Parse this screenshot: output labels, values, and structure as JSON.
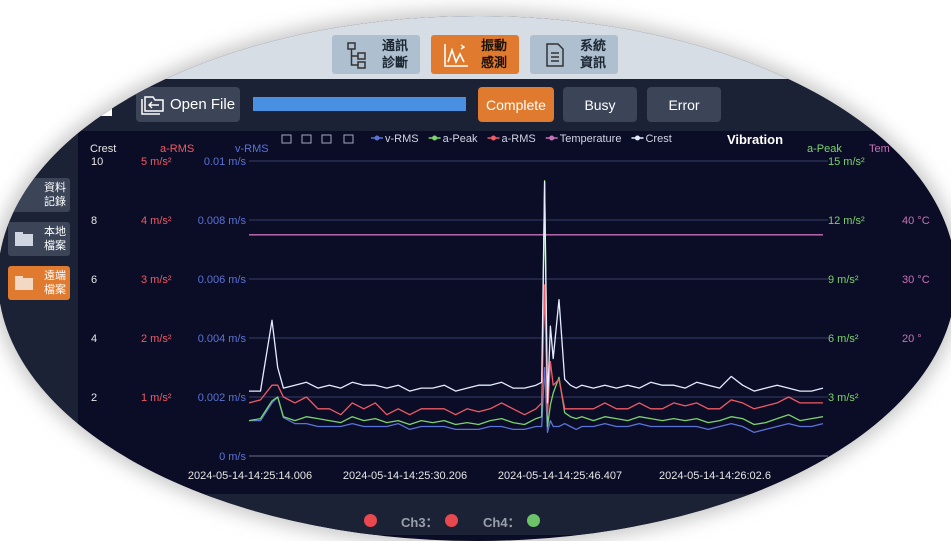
{
  "nav": {
    "diagnostics": "通訊診斷",
    "vibration": "振動感測",
    "system": "系統資訊"
  },
  "toolbar": {
    "open_file": "Open File",
    "progress": 1.0,
    "complete": "Complete",
    "busy": "Busy",
    "error": "Error"
  },
  "sidebar": {
    "items": [
      {
        "label": "資料記錄",
        "active": false
      },
      {
        "label": "本地檔案",
        "active": false
      },
      {
        "label": "遠端檔案",
        "active": true
      }
    ]
  },
  "colors": {
    "accent": "#e07a2e",
    "v_rms": "#5a73d6",
    "a_peak": "#7bd36b",
    "a_rms": "#ef5a64",
    "temperature": "#c971b8",
    "crest": "#e6ecff"
  },
  "chart_data": {
    "type": "line",
    "title": "Vibration",
    "legend": [
      "v-RMS",
      "a-Peak",
      "a-RMS",
      "Temperature",
      "Crest"
    ],
    "toolbox_icons": [
      "zoom-icon",
      "zoom-reset-icon",
      "restore-icon",
      "download-icon"
    ],
    "axes": {
      "crest": {
        "label": "Crest",
        "ticks": [
          "10",
          "8",
          "6",
          "4",
          "2"
        ],
        "range": [
          0,
          10
        ]
      },
      "a_rms": {
        "label": "a-RMS",
        "ticks": [
          "5 m/s²",
          "4 m/s²",
          "3 m/s²",
          "2 m/s²",
          "1 m/s²"
        ],
        "range": [
          0,
          5
        ]
      },
      "v_rms": {
        "label": "v-RMS",
        "ticks": [
          "0.01 m/s",
          "0.008 m/s",
          "0.006 m/s",
          "0.004 m/s",
          "0.002 m/s",
          "0 m/s"
        ],
        "range": [
          0,
          0.01
        ]
      },
      "a_peak": {
        "label": "a-Peak",
        "ticks": [
          "15 m/s²",
          "12 m/s²",
          "9 m/s²",
          "6 m/s²",
          "3 m/s²"
        ],
        "range": [
          0,
          15
        ]
      },
      "temperature": {
        "label": "Tem",
        "ticks": [
          "40 °C",
          "30 °C",
          "20 °"
        ],
        "range": [
          0,
          50
        ]
      }
    },
    "x_labels": [
      "2024-05-14-14:25:14.006",
      "2024-05-14-14:25:30.206",
      "2024-05-14-14:25:46.407",
      "2024-05-14-14:26:02.6"
    ],
    "x": [
      0,
      0.02,
      0.04,
      0.05,
      0.06,
      0.08,
      0.1,
      0.12,
      0.14,
      0.16,
      0.18,
      0.2,
      0.22,
      0.24,
      0.26,
      0.28,
      0.3,
      0.32,
      0.34,
      0.36,
      0.38,
      0.4,
      0.42,
      0.44,
      0.46,
      0.48,
      0.5,
      0.51,
      0.515,
      0.52,
      0.525,
      0.53,
      0.54,
      0.55,
      0.56,
      0.57,
      0.58,
      0.6,
      0.62,
      0.64,
      0.66,
      0.68,
      0.7,
      0.72,
      0.74,
      0.76,
      0.78,
      0.8,
      0.82,
      0.84,
      0.86,
      0.88,
      0.9,
      0.92,
      0.94,
      0.96,
      0.98,
      1.0
    ],
    "series": [
      {
        "name": "v-RMS",
        "axis": "v_rms",
        "values": [
          0.0012,
          0.0012,
          0.0018,
          0.002,
          0.0013,
          0.0011,
          0.0011,
          0.001,
          0.001,
          0.001,
          0.0011,
          0.001,
          0.001,
          0.001,
          0.0011,
          0.0009,
          0.001,
          0.001,
          0.001,
          0.0009,
          0.0009,
          0.0009,
          0.001,
          0.001,
          0.0009,
          0.0009,
          0.001,
          0.001,
          0.003,
          0.0008,
          0.0012,
          0.001,
          0.001,
          0.0011,
          0.001,
          0.0009,
          0.001,
          0.001,
          0.0011,
          0.001,
          0.001,
          0.0011,
          0.001,
          0.001,
          0.001,
          0.001,
          0.001,
          0.0009,
          0.001,
          0.0011,
          0.001,
          0.0008,
          0.0009,
          0.001,
          0.0011,
          0.001,
          0.001,
          0.0011
        ]
      },
      {
        "name": "a-Peak",
        "axis": "a_peak",
        "values": [
          1.8,
          1.9,
          2.8,
          3.0,
          2.0,
          1.8,
          2.0,
          1.9,
          1.8,
          1.7,
          2.0,
          1.8,
          1.9,
          1.7,
          1.8,
          1.6,
          1.8,
          1.7,
          1.8,
          1.6,
          1.7,
          1.6,
          1.8,
          1.9,
          1.7,
          1.6,
          1.9,
          2.0,
          14.0,
          1.5,
          2.6,
          3.2,
          4.0,
          2.2,
          2.0,
          1.9,
          2.0,
          1.8,
          2.0,
          1.9,
          1.8,
          2.0,
          1.9,
          1.8,
          1.9,
          1.8,
          1.9,
          1.7,
          1.8,
          2.0,
          1.9,
          1.6,
          1.7,
          1.9,
          2.1,
          1.8,
          1.9,
          2.0
        ]
      },
      {
        "name": "a-RMS",
        "axis": "a_rms",
        "values": [
          0.9,
          0.95,
          1.2,
          1.2,
          1.0,
          0.9,
          1.0,
          0.8,
          0.8,
          0.7,
          0.9,
          0.8,
          0.9,
          0.7,
          0.8,
          0.7,
          0.8,
          0.8,
          0.8,
          0.7,
          0.8,
          0.75,
          0.8,
          0.9,
          0.8,
          0.7,
          0.8,
          0.9,
          2.9,
          0.7,
          1.6,
          1.2,
          1.3,
          0.8,
          0.8,
          0.8,
          0.8,
          0.8,
          0.9,
          0.8,
          0.8,
          0.9,
          0.8,
          0.8,
          0.9,
          0.85,
          0.9,
          0.8,
          0.8,
          0.95,
          0.9,
          0.8,
          0.85,
          0.9,
          1.0,
          0.9,
          0.9,
          0.9
        ]
      },
      {
        "name": "Temperature",
        "axis": "temperature",
        "values": [
          37.5,
          37.5,
          37.5,
          37.5,
          37.5,
          37.5,
          37.5,
          37.5,
          37.5,
          37.5,
          37.5,
          37.5,
          37.5,
          37.5,
          37.5,
          37.5,
          37.5,
          37.5,
          37.5,
          37.5,
          37.5,
          37.5,
          37.5,
          37.5,
          37.5,
          37.5,
          37.5,
          37.5,
          37.5,
          37.5,
          37.5,
          37.5,
          37.5,
          37.5,
          37.5,
          37.5,
          37.5,
          37.5,
          37.5,
          37.5,
          37.5,
          37.5,
          37.5,
          37.5,
          37.5,
          37.5,
          37.5,
          37.5,
          37.5,
          37.5,
          37.5,
          37.5,
          37.5,
          37.5,
          37.5,
          37.5,
          37.5,
          37.5
        ]
      },
      {
        "name": "Crest",
        "axis": "crest",
        "values": [
          2.2,
          2.2,
          4.6,
          3.0,
          2.3,
          2.4,
          2.5,
          2.3,
          2.4,
          2.3,
          2.5,
          2.4,
          2.4,
          2.3,
          2.4,
          2.2,
          2.3,
          2.3,
          2.4,
          2.2,
          2.3,
          2.4,
          2.4,
          2.5,
          2.3,
          2.3,
          2.4,
          2.5,
          9.3,
          1.8,
          4.4,
          3.3,
          5.3,
          2.6,
          2.4,
          2.3,
          2.4,
          2.3,
          2.4,
          2.3,
          2.4,
          2.3,
          2.5,
          2.4,
          2.4,
          2.3,
          2.5,
          2.4,
          2.3,
          2.7,
          2.4,
          2.2,
          2.3,
          2.4,
          2.3,
          2.2,
          2.2,
          2.3
        ]
      }
    ]
  },
  "status": {
    "ch3": "Ch3：",
    "ch4": "Ch4："
  }
}
